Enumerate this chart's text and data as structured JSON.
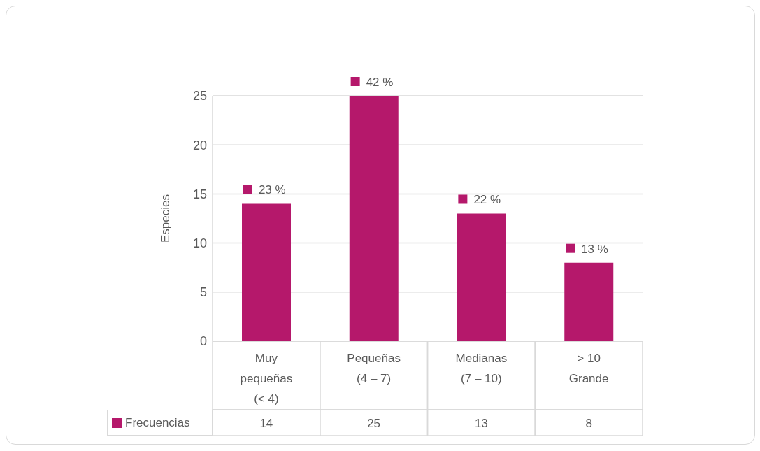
{
  "chart_data": {
    "type": "bar",
    "ylabel": "Especies",
    "categories": [
      "Muy\npequeñas\n(< 4)",
      "Pequeñas\n(4 – 7)",
      "Medianas\n(7 – 10)",
      "> 10\nGrande"
    ],
    "series": [
      {
        "name": "Frecuencias",
        "color": "#b5186b",
        "values": [
          14,
          25,
          13,
          8
        ]
      }
    ],
    "annotations": [
      {
        "text": "23 %",
        "x": "Muy\npequeñas\n(< 4)",
        "y": 14
      },
      {
        "text": "42 %",
        "x": "Pequeñas\n(4 – 7)",
        "y": 25
      },
      {
        "text": "22 %",
        "x": "Medianas\n(7 – 10)",
        "y": 13
      },
      {
        "text": "13 %",
        "x": "> 10\nGrande",
        "y": 8
      }
    ],
    "ylim": [
      0,
      25
    ],
    "yticks": [
      0,
      5,
      10,
      15,
      20,
      25
    ],
    "grid": "y",
    "legend": "bottom left",
    "data_labels": true
  }
}
